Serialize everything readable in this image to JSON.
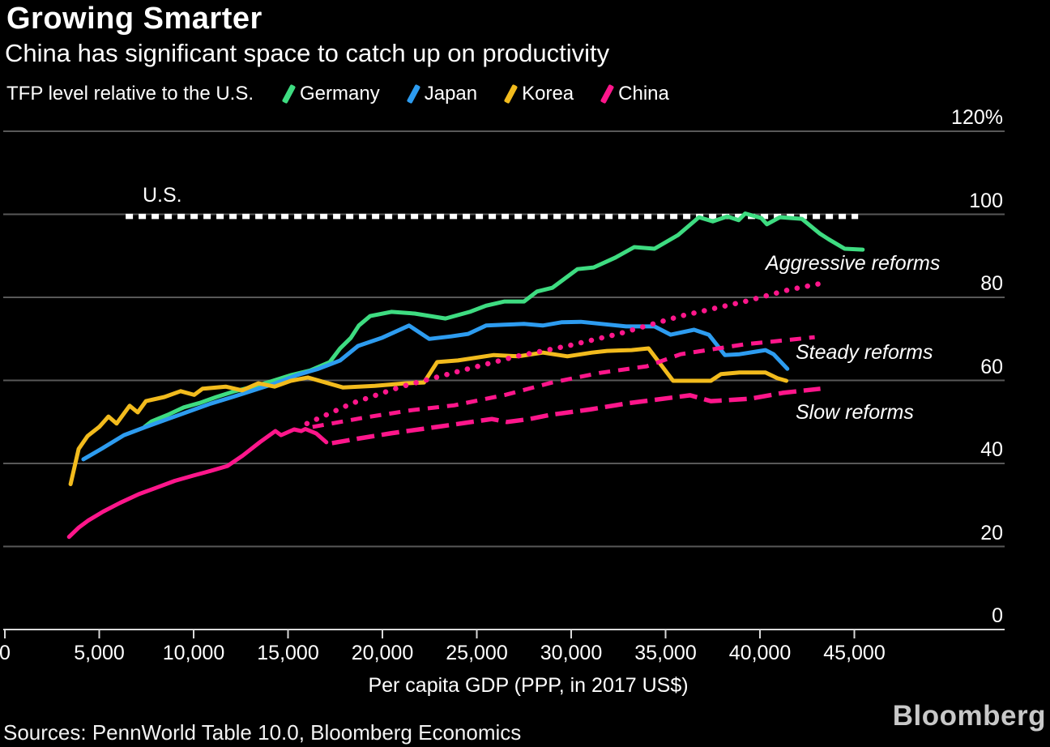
{
  "header": {
    "title": "Growing Smarter",
    "subtitle": "China has significant space to catch up on productivity"
  },
  "legend": {
    "caption": "TFP level relative to the U.S.",
    "items": [
      {
        "label": "Germany",
        "color": "#3edc81"
      },
      {
        "label": "Japan",
        "color": "#2d9cf0"
      },
      {
        "label": "Korea",
        "color": "#f2bb1d"
      },
      {
        "label": "China",
        "color": "#ff168b"
      }
    ]
  },
  "chart_data": {
    "type": "line",
    "title": "Growing Smarter",
    "subtitle": "China has significant space to catch up on productivity",
    "xlabel": "Per capita GDP (PPP, in 2017 US$)",
    "ylabel": "TFP level relative to the U.S. (%)",
    "xlim": [
      0,
      52900
    ],
    "ylim": [
      0,
      120
    ],
    "grid": true,
    "legend_position": "top",
    "x_tick_values": [
      0,
      5000,
      10000,
      15000,
      20000,
      25000,
      30000,
      35000,
      40000,
      45000
    ],
    "x_ticks": [
      "0",
      "5,000",
      "10,000",
      "15,000",
      "20,000",
      "25,000",
      "30,000",
      "35,000",
      "40,000",
      "45,000"
    ],
    "y_tick_values": [
      120,
      100,
      80,
      60,
      40,
      20,
      0
    ],
    "y_ticks": [
      "120%",
      "100",
      "80",
      "60",
      "40",
      "20",
      "0"
    ],
    "series": [
      {
        "name": "U.S.",
        "color": "#ffffff",
        "style": "us-dash",
        "role": "reference",
        "points": [
          [
            6400,
            99.5
          ],
          [
            45200,
            99.5
          ]
        ]
      },
      {
        "name": "Germany",
        "color": "#3edc81",
        "style": "solid",
        "points": [
          [
            7400,
            48.8
          ],
          [
            7770,
            50.1
          ],
          [
            8630,
            51.7
          ],
          [
            9480,
            53.5
          ],
          [
            10340,
            54.6
          ],
          [
            11200,
            56.0
          ],
          [
            12190,
            57.4
          ],
          [
            13170,
            58.5
          ],
          [
            14200,
            59.9
          ],
          [
            15190,
            61.3
          ],
          [
            16180,
            62.4
          ],
          [
            17210,
            64.4
          ],
          [
            17760,
            67.7
          ],
          [
            18320,
            70.2
          ],
          [
            18750,
            73.2
          ],
          [
            19350,
            75.5
          ],
          [
            20470,
            76.5
          ],
          [
            21710,
            76.1
          ],
          [
            23340,
            74.9
          ],
          [
            24630,
            76.5
          ],
          [
            25490,
            78.0
          ],
          [
            26470,
            79.0
          ],
          [
            27500,
            79.0
          ],
          [
            28190,
            81.4
          ],
          [
            29000,
            82.3
          ],
          [
            30330,
            86.8
          ],
          [
            31190,
            87.2
          ],
          [
            32350,
            89.6
          ],
          [
            33340,
            92.1
          ],
          [
            34410,
            91.7
          ],
          [
            35660,
            95.0
          ],
          [
            36770,
            99.3
          ],
          [
            37500,
            98.3
          ],
          [
            38270,
            99.5
          ],
          [
            38870,
            98.6
          ],
          [
            39220,
            100.2
          ],
          [
            40070,
            99.1
          ],
          [
            40370,
            97.6
          ],
          [
            41060,
            99.3
          ],
          [
            42220,
            98.9
          ],
          [
            43160,
            95.4
          ],
          [
            43640,
            94.0
          ],
          [
            44490,
            91.7
          ],
          [
            45440,
            91.5
          ]
        ]
      },
      {
        "name": "Japan",
        "color": "#2d9cf0",
        "style": "solid",
        "points": [
          [
            4160,
            41.0
          ],
          [
            5190,
            43.7
          ],
          [
            6310,
            46.8
          ],
          [
            7470,
            48.8
          ],
          [
            8630,
            50.7
          ],
          [
            9740,
            52.5
          ],
          [
            10900,
            54.4
          ],
          [
            12060,
            56.0
          ],
          [
            13170,
            57.6
          ],
          [
            14330,
            59.3
          ],
          [
            15490,
            61.3
          ],
          [
            16610,
            62.8
          ],
          [
            17760,
            64.8
          ],
          [
            18710,
            68.3
          ],
          [
            20000,
            70.3
          ],
          [
            21410,
            73.2
          ],
          [
            22480,
            70.0
          ],
          [
            23640,
            70.6
          ],
          [
            24540,
            71.2
          ],
          [
            25490,
            73.2
          ],
          [
            26470,
            73.4
          ],
          [
            27500,
            73.6
          ],
          [
            28490,
            73.2
          ],
          [
            29480,
            74.0
          ],
          [
            30510,
            74.1
          ],
          [
            31620,
            73.6
          ],
          [
            32910,
            73.0
          ],
          [
            34410,
            73.0
          ],
          [
            35270,
            71.0
          ],
          [
            36510,
            72.2
          ],
          [
            37290,
            71.0
          ],
          [
            38140,
            66.1
          ],
          [
            38920,
            66.3
          ],
          [
            40290,
            67.3
          ],
          [
            40720,
            66.3
          ],
          [
            41450,
            62.8
          ]
        ]
      },
      {
        "name": "Korea",
        "color": "#f2bb1d",
        "style": "solid",
        "points": [
          [
            3480,
            35.0
          ],
          [
            3910,
            43.5
          ],
          [
            4380,
            46.6
          ],
          [
            5000,
            48.8
          ],
          [
            5490,
            51.3
          ],
          [
            5920,
            49.6
          ],
          [
            6610,
            53.9
          ],
          [
            7040,
            52.3
          ],
          [
            7470,
            55.0
          ],
          [
            8450,
            56.0
          ],
          [
            9310,
            57.4
          ],
          [
            10030,
            56.5
          ],
          [
            10470,
            58.0
          ],
          [
            11700,
            58.5
          ],
          [
            12570,
            57.6
          ],
          [
            13430,
            59.3
          ],
          [
            14290,
            58.5
          ],
          [
            15150,
            59.9
          ],
          [
            16050,
            60.7
          ],
          [
            17900,
            58.3
          ],
          [
            19600,
            58.7
          ],
          [
            21200,
            59.3
          ],
          [
            22200,
            59.5
          ],
          [
            22900,
            64.4
          ],
          [
            24000,
            64.8
          ],
          [
            25900,
            66.1
          ],
          [
            27200,
            65.8
          ],
          [
            28500,
            66.7
          ],
          [
            29800,
            65.8
          ],
          [
            31100,
            66.7
          ],
          [
            31900,
            67.1
          ],
          [
            33200,
            67.3
          ],
          [
            34100,
            67.7
          ],
          [
            35400,
            59.9
          ],
          [
            37400,
            59.9
          ],
          [
            37930,
            61.5
          ],
          [
            38920,
            61.9
          ],
          [
            40290,
            61.9
          ],
          [
            40930,
            60.5
          ],
          [
            41400,
            59.9
          ]
        ]
      },
      {
        "name": "China",
        "color": "#ff168b",
        "style": "solid",
        "points": [
          [
            3400,
            22.3
          ],
          [
            3900,
            24.5
          ],
          [
            4400,
            26.2
          ],
          [
            5200,
            28.4
          ],
          [
            6100,
            30.5
          ],
          [
            7100,
            32.6
          ],
          [
            8000,
            34.1
          ],
          [
            9000,
            35.8
          ],
          [
            10000,
            37.1
          ],
          [
            10900,
            38.2
          ],
          [
            11800,
            39.4
          ],
          [
            12600,
            41.9
          ],
          [
            13500,
            45.1
          ],
          [
            14330,
            47.8
          ],
          [
            14630,
            46.8
          ],
          [
            15320,
            48.2
          ],
          [
            15700,
            47.8
          ],
          [
            15920,
            48.3
          ],
          [
            16500,
            47.2
          ],
          [
            17030,
            45.1
          ]
        ]
      },
      {
        "name": "Aggressive reforms",
        "color": "#ff168b",
        "style": "dot",
        "role": "projection",
        "points": [
          [
            16000,
            49.6
          ],
          [
            18400,
            54.5
          ],
          [
            21000,
            58.5
          ],
          [
            24300,
            62.5
          ],
          [
            27100,
            65.8
          ],
          [
            29800,
            68.3
          ],
          [
            32500,
            71.2
          ],
          [
            35800,
            75.5
          ],
          [
            39200,
            79.0
          ],
          [
            41500,
            81.8
          ],
          [
            43400,
            83.5
          ]
        ]
      },
      {
        "name": "Steady reforms",
        "color": "#ff168b",
        "style": "dash",
        "role": "projection",
        "points": [
          [
            16300,
            48.8
          ],
          [
            19000,
            51.0
          ],
          [
            21500,
            52.8
          ],
          [
            23800,
            54.0
          ],
          [
            26500,
            56.5
          ],
          [
            29000,
            59.5
          ],
          [
            31500,
            61.8
          ],
          [
            34000,
            63.4
          ],
          [
            35800,
            66.3
          ],
          [
            39200,
            68.7
          ],
          [
            41000,
            69.5
          ],
          [
            42900,
            70.4
          ]
        ]
      },
      {
        "name": "Slow reforms",
        "color": "#ff168b",
        "style": "longdash",
        "role": "projection",
        "points": [
          [
            17330,
            44.9
          ],
          [
            18600,
            45.9
          ],
          [
            20500,
            47.3
          ],
          [
            22900,
            48.8
          ],
          [
            25800,
            50.7
          ],
          [
            26600,
            50.0
          ],
          [
            27800,
            50.7
          ],
          [
            28900,
            51.7
          ],
          [
            31000,
            53.0
          ],
          [
            33000,
            54.5
          ],
          [
            36300,
            56.4
          ],
          [
            37400,
            55.0
          ],
          [
            39500,
            55.6
          ],
          [
            41200,
            57.0
          ],
          [
            43200,
            58.0
          ]
        ]
      }
    ],
    "annotations": [
      {
        "text": "U.S."
      },
      {
        "text": "Aggressive reforms"
      },
      {
        "text": "Steady reforms"
      },
      {
        "text": "Slow reforms"
      }
    ]
  },
  "footer": {
    "sources": "Sources: PennWorld Table 10.0, Bloomberg Economics",
    "logo": "Bloomberg"
  },
  "colors": {
    "background": "#000000",
    "grid": "#585858",
    "axis": "#d9d9d9",
    "text": "#ffffff"
  }
}
